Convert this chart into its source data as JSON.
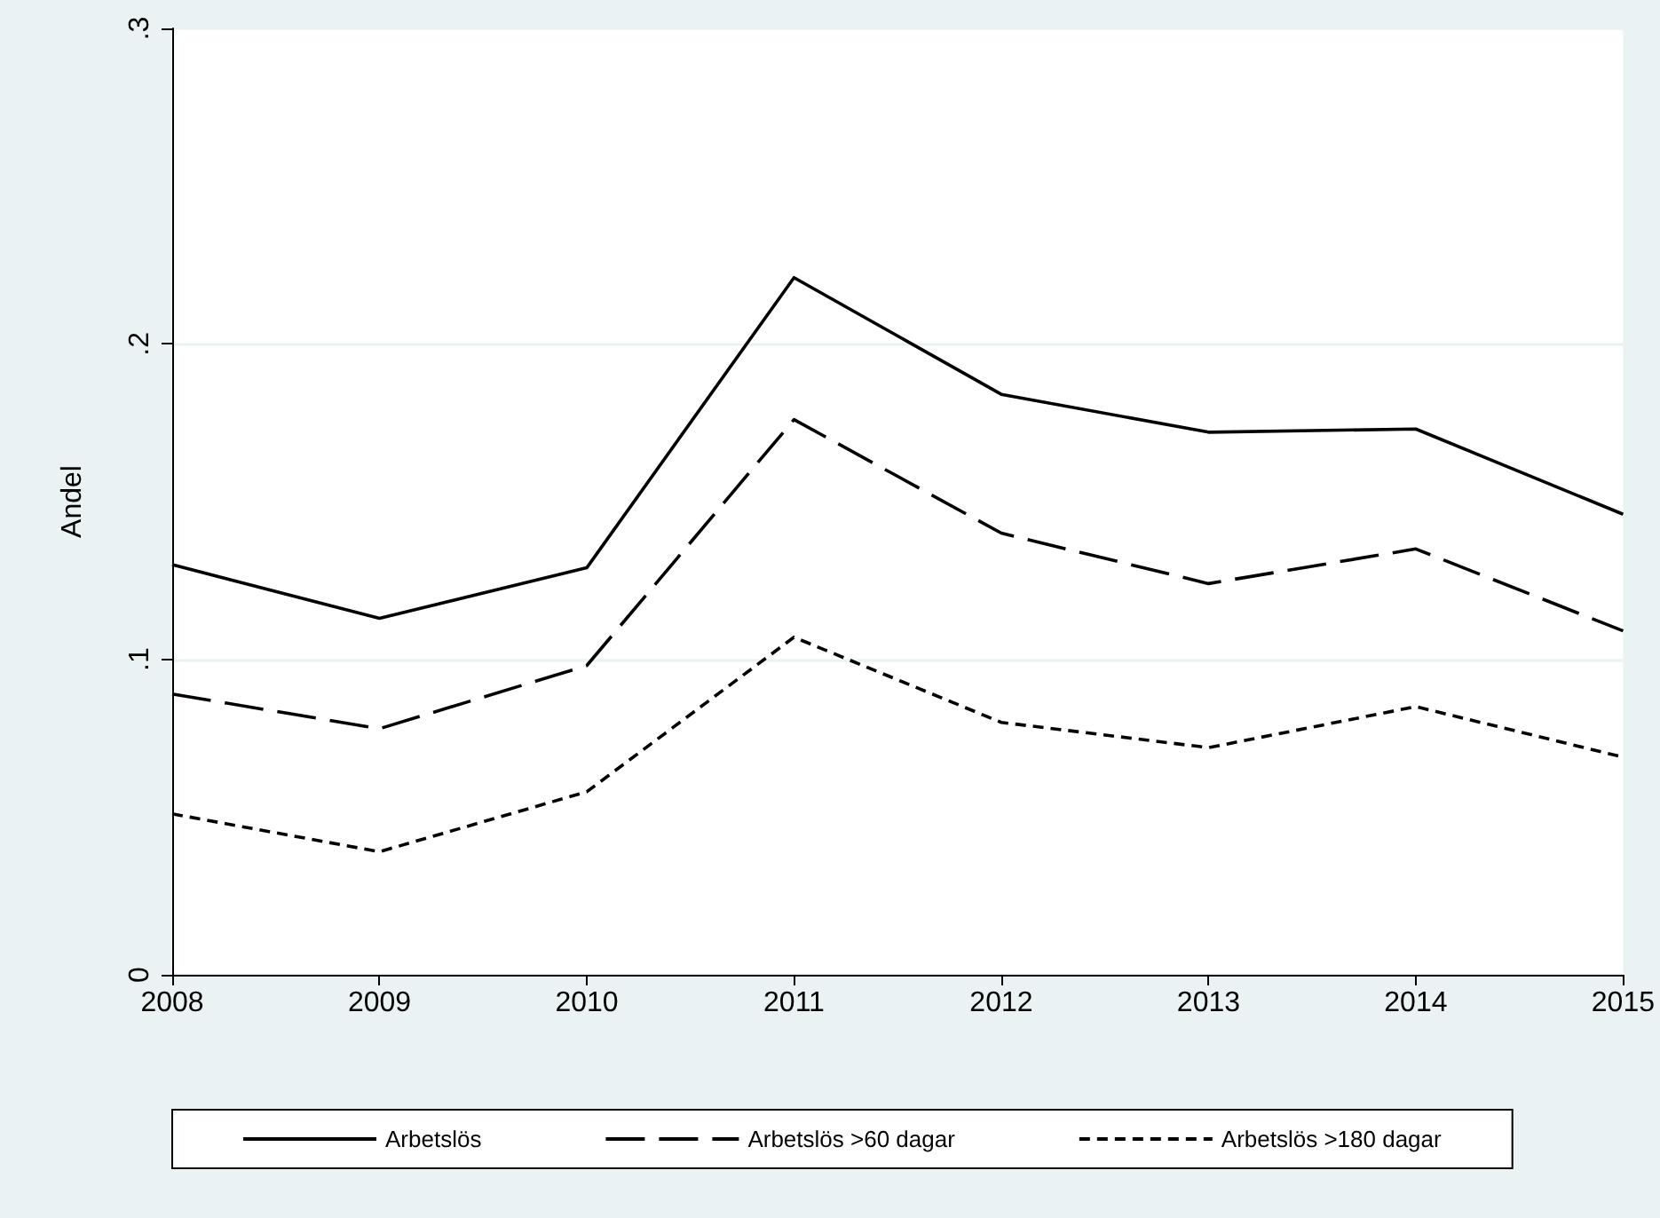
{
  "chart_data": {
    "type": "line",
    "ylabel": "Andel",
    "x": [
      2008,
      2009,
      2010,
      2011,
      2012,
      2013,
      2014,
      2015
    ],
    "xlim": [
      2008,
      2015
    ],
    "xticks": [
      2008,
      2009,
      2010,
      2011,
      2012,
      2013,
      2014,
      2015
    ],
    "ylim": [
      0,
      0.3
    ],
    "yticks": [
      {
        "value": 0,
        "label": "0"
      },
      {
        "value": 0.1,
        "label": ".1"
      },
      {
        "value": 0.2,
        "label": ".2"
      },
      {
        "value": 0.3,
        "label": ".3"
      }
    ],
    "grid": "y",
    "legend": "bottom",
    "marker": "none",
    "series": [
      {
        "name": "Arbetslös",
        "color": "#000000",
        "line_style": "solid",
        "values": [
          0.13,
          0.113,
          0.129,
          0.221,
          0.184,
          0.172,
          0.173,
          0.146
        ]
      },
      {
        "name": "Arbetslös >60 dagar",
        "color": "#000000",
        "line_style": "dashed",
        "values": [
          0.089,
          0.078,
          0.098,
          0.176,
          0.14,
          0.124,
          0.135,
          0.109
        ]
      },
      {
        "name": "Arbetslös >180 dagar",
        "color": "#000000",
        "line_style": "dotted",
        "values": [
          0.051,
          0.039,
          0.058,
          0.107,
          0.08,
          0.072,
          0.085,
          0.069
        ]
      }
    ]
  }
}
